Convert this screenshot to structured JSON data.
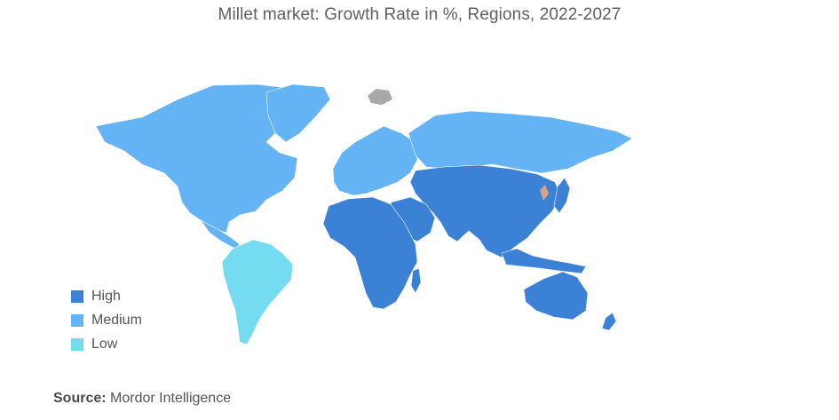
{
  "title": "Millet market: Growth Rate in %, Regions, 2022-2027",
  "legend": {
    "items": [
      {
        "label": "High",
        "color": "#3b82d6"
      },
      {
        "label": "Medium",
        "color": "#63b3f5"
      },
      {
        "label": "Low",
        "color": "#74dbf0"
      }
    ]
  },
  "regions": [
    {
      "name": "North America",
      "level": "Medium"
    },
    {
      "name": "South America",
      "level": "Low"
    },
    {
      "name": "Europe",
      "level": "Medium"
    },
    {
      "name": "Russia",
      "level": "Medium"
    },
    {
      "name": "Africa",
      "level": "High"
    },
    {
      "name": "Middle East",
      "level": "High"
    },
    {
      "name": "Asia-Pacific",
      "level": "High"
    },
    {
      "name": "Australia",
      "level": "High"
    }
  ],
  "colors": {
    "no_data": "#a8a8a8",
    "highlight": "#d9a283"
  },
  "source": {
    "label": "Source:",
    "text": "Mordor Intelligence"
  }
}
